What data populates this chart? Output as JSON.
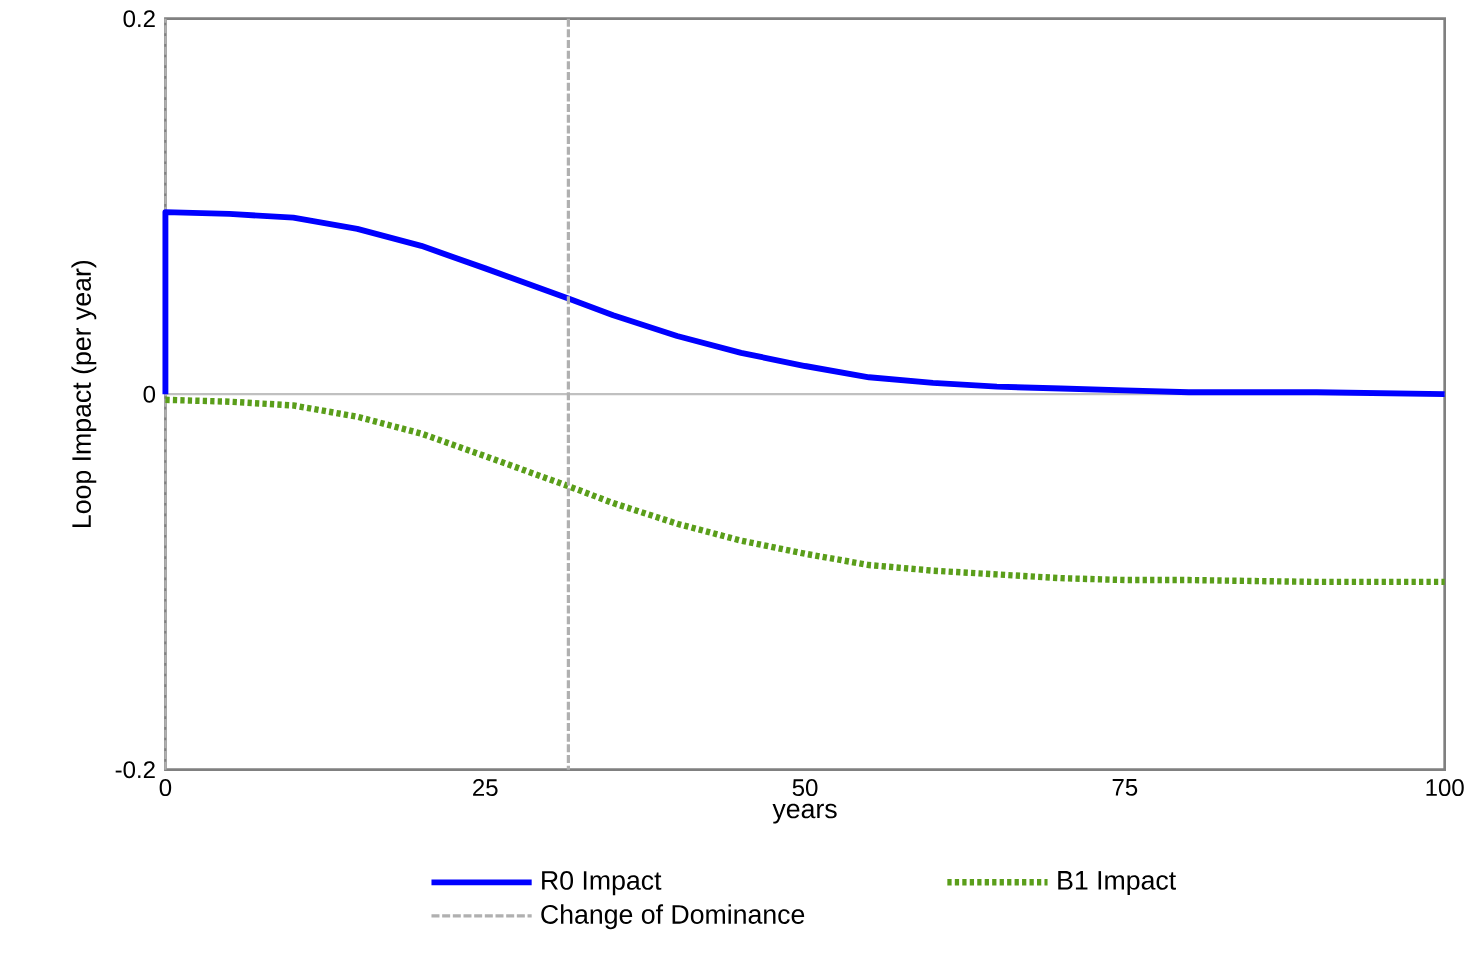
{
  "chart_data": {
    "type": "line",
    "xlabel": "years",
    "ylabel": "Loop Impact (per year)",
    "xlim": [
      0,
      100
    ],
    "ylim": [
      -0.2,
      0.2
    ],
    "xticks": [
      0,
      25,
      50,
      75,
      100
    ],
    "yticks": [
      -0.2,
      0,
      0.2
    ],
    "grid": false,
    "legend": "bottom",
    "marker": "none",
    "ref_lines": [
      {
        "axis": "y",
        "value": 0,
        "color": "#c0c0c0",
        "line_style": "solid"
      },
      {
        "axis": "x",
        "value": 0,
        "color": "#b0b0b0",
        "line_style": "dashed"
      }
    ],
    "series": [
      {
        "name": "R0 Impact",
        "color": "#0000ff",
        "line_style": "solid",
        "x": [
          0,
          0,
          5,
          10,
          15,
          20,
          25,
          31.5,
          35,
          40,
          45,
          50,
          55,
          60,
          65,
          70,
          75,
          80,
          90,
          100
        ],
        "values": [
          0,
          0.097,
          0.096,
          0.094,
          0.088,
          0.079,
          0.067,
          0.051,
          0.042,
          0.031,
          0.022,
          0.015,
          0.009,
          0.006,
          0.004,
          0.003,
          0.002,
          0.001,
          0.001,
          0
        ]
      },
      {
        "name": "B1 Impact",
        "color": "#5a9e1a",
        "line_style": "dotted",
        "x": [
          0,
          5,
          10,
          15,
          20,
          25,
          31.5,
          35,
          40,
          45,
          50,
          55,
          60,
          65,
          70,
          75,
          80,
          90,
          100
        ],
        "values": [
          -0.003,
          -0.004,
          -0.006,
          -0.012,
          -0.021,
          -0.033,
          -0.049,
          -0.058,
          -0.069,
          -0.078,
          -0.085,
          -0.091,
          -0.094,
          -0.096,
          -0.098,
          -0.099,
          -0.099,
          -0.1,
          -0.1
        ]
      },
      {
        "name": "Change of Dominance",
        "color": "#b0b0b0",
        "line_style": "dashed",
        "x": [
          31.5,
          31.5
        ],
        "values": [
          0.2,
          -0.2
        ]
      }
    ]
  }
}
